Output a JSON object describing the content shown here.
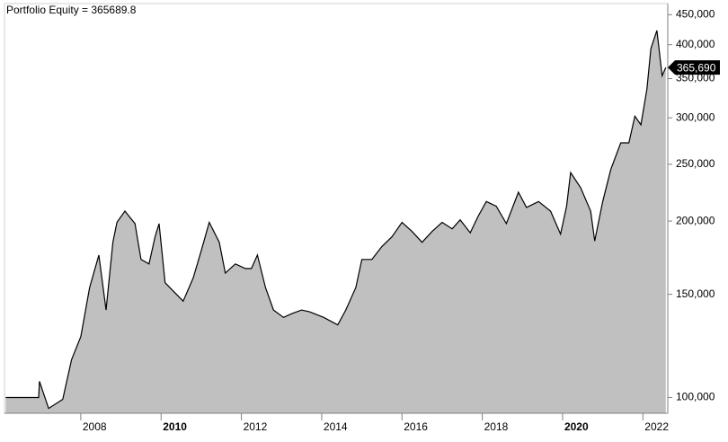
{
  "chart_data": {
    "type": "area",
    "title": "Portfolio Equity = 365689.8",
    "x": [
      2006.13,
      2006.95,
      2006.97,
      2007.2,
      2007.55,
      2007.77,
      2008.0,
      2008.22,
      2008.45,
      2008.63,
      2008.8,
      2008.9,
      2009.1,
      2009.35,
      2009.5,
      2009.7,
      2009.85,
      2009.95,
      2010.1,
      2010.3,
      2010.55,
      2010.8,
      2011.0,
      2011.2,
      2011.45,
      2011.6,
      2011.85,
      2012.1,
      2012.25,
      2012.4,
      2012.6,
      2012.8,
      2013.05,
      2013.25,
      2013.5,
      2013.7,
      2014.05,
      2014.4,
      2014.6,
      2014.85,
      2015.0,
      2015.25,
      2015.5,
      2015.75,
      2016.0,
      2016.25,
      2016.5,
      2016.75,
      2017.0,
      2017.25,
      2017.45,
      2017.7,
      2017.9,
      2018.1,
      2018.35,
      2018.6,
      2018.9,
      2019.1,
      2019.4,
      2019.7,
      2019.95,
      2020.1,
      2020.2,
      2020.45,
      2020.7,
      2020.8,
      2021.0,
      2021.2,
      2021.45,
      2021.65,
      2021.8,
      2021.95,
      2022.1,
      2022.2,
      2022.35,
      2022.48,
      2022.57
    ],
    "series": [
      {
        "name": "Portfolio Equity",
        "color": "#000000",
        "fill": "#c0c0c0",
        "values": [
          100000,
          100000,
          106600,
          95800,
          99300,
          116000,
          127000,
          154000,
          175000,
          141000,
          184000,
          199000,
          208000,
          198000,
          172000,
          169000,
          188000,
          198000,
          157000,
          152000,
          146000,
          160000,
          178000,
          199000,
          184000,
          163000,
          169000,
          166000,
          166000,
          175000,
          154000,
          141000,
          137000,
          139000,
          141000,
          140000,
          137000,
          133000,
          141000,
          154000,
          172000,
          172000,
          181000,
          188000,
          199000,
          192000,
          184000,
          192000,
          199000,
          194000,
          201000,
          191000,
          204000,
          216000,
          212000,
          198000,
          224000,
          211000,
          216000,
          208000,
          190000,
          212000,
          242000,
          228000,
          208000,
          185000,
          216000,
          245000,
          272000,
          272000,
          302000,
          292000,
          336000,
          394000,
          423000,
          354000,
          365689.8
        ]
      }
    ],
    "current_value_label": "365,690",
    "xlim": [
      2006.1,
      2022.62
    ],
    "xticks": [
      2008,
      2010,
      2012,
      2014,
      2016,
      2018,
      2020,
      2022
    ],
    "ylim": [
      94000,
      470000
    ],
    "ylog": true,
    "yticks": [
      {
        "value": 100000,
        "label": "100,000"
      },
      {
        "value": 150000,
        "label": "150,000"
      },
      {
        "value": 200000,
        "label": "200,000"
      },
      {
        "value": 250000,
        "label": "250,000"
      },
      {
        "value": 300000,
        "label": "300,000"
      },
      {
        "value": 350000,
        "label": "350,000"
      },
      {
        "value": 400000,
        "label": "400,000"
      },
      {
        "value": 450000,
        "label": "450,000"
      }
    ],
    "grid": false
  }
}
